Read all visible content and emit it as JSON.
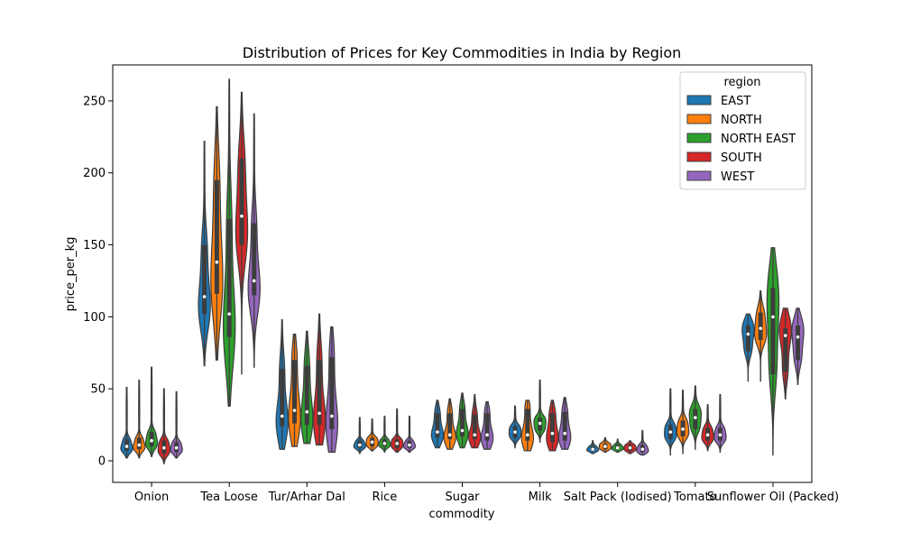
{
  "chart_data": {
    "type": "violin",
    "title": "Distribution of Prices for Key Commodities in India by Region",
    "xlabel": "commodity",
    "ylabel": "price_per_kg",
    "ylim": [
      -15,
      275
    ],
    "yticks": [
      0,
      50,
      100,
      150,
      200,
      250
    ],
    "categories": [
      "Onion",
      "Tea Loose",
      "Tur/Arhar Dal",
      "Rice",
      "Sugar",
      "Milk",
      "Salt Pack (Iodised)",
      "Tomato",
      "Sunflower Oil (Packed)"
    ],
    "legend": {
      "title": "region",
      "placement": "top-right"
    },
    "colors": {
      "EAST": "#1f77b4",
      "NORTH": "#ff7f0e",
      "NORTH EAST": "#2ca02c",
      "SOUTH": "#d62728",
      "WEST": "#9467bd"
    },
    "series": [
      {
        "name": "EAST",
        "stats": [
          {
            "min": 2,
            "q1": 7,
            "median": 10,
            "q3": 15,
            "max": 51
          },
          {
            "min": 66,
            "q1": 102,
            "median": 114,
            "q3": 150,
            "max": 222
          },
          {
            "min": 8,
            "q1": 24,
            "median": 31,
            "q3": 64,
            "max": 98
          },
          {
            "min": 5,
            "q1": 9,
            "median": 11,
            "q3": 14,
            "max": 30
          },
          {
            "min": 9,
            "q1": 16,
            "median": 20,
            "q3": 33,
            "max": 42
          },
          {
            "min": 9,
            "q1": 16,
            "median": 20,
            "q3": 24,
            "max": 38
          },
          {
            "min": 5,
            "q1": 7,
            "median": 8,
            "q3": 10,
            "max": 14
          },
          {
            "min": 4,
            "q1": 15,
            "median": 20,
            "q3": 25,
            "max": 50
          },
          {
            "min": 55,
            "q1": 76,
            "median": 88,
            "q3": 94,
            "max": 102
          }
        ]
      },
      {
        "name": "NORTH",
        "stats": [
          {
            "min": 2,
            "q1": 8,
            "median": 11,
            "q3": 16,
            "max": 56
          },
          {
            "min": 70,
            "q1": 116,
            "median": 138,
            "q3": 195,
            "max": 246
          },
          {
            "min": 10,
            "q1": 26,
            "median": 35,
            "q3": 70,
            "max": 88
          },
          {
            "min": 7,
            "q1": 10,
            "median": 13,
            "q3": 16,
            "max": 29
          },
          {
            "min": 8,
            "q1": 15,
            "median": 18,
            "q3": 33,
            "max": 43
          },
          {
            "min": 7,
            "q1": 14,
            "median": 18,
            "q3": 36,
            "max": 42
          },
          {
            "min": 6,
            "q1": 8,
            "median": 10,
            "q3": 12,
            "max": 16
          },
          {
            "min": 5,
            "q1": 17,
            "median": 22,
            "q3": 28,
            "max": 49
          },
          {
            "min": 55,
            "q1": 84,
            "median": 92,
            "q3": 103,
            "max": 118
          }
        ]
      },
      {
        "name": "NORTH EAST",
        "stats": [
          {
            "min": 3,
            "q1": 10,
            "median": 14,
            "q3": 20,
            "max": 65
          },
          {
            "min": 38,
            "q1": 86,
            "median": 102,
            "q3": 168,
            "max": 265
          },
          {
            "min": 12,
            "q1": 25,
            "median": 34,
            "q3": 66,
            "max": 90
          },
          {
            "min": 6,
            "q1": 10,
            "median": 12,
            "q3": 15,
            "max": 31
          },
          {
            "min": 9,
            "q1": 17,
            "median": 21,
            "q3": 36,
            "max": 47
          },
          {
            "min": 13,
            "q1": 21,
            "median": 26,
            "q3": 30,
            "max": 56
          },
          {
            "min": 6,
            "q1": 8,
            "median": 9,
            "q3": 11,
            "max": 15
          },
          {
            "min": 8,
            "q1": 22,
            "median": 30,
            "q3": 36,
            "max": 52
          },
          {
            "min": 4,
            "q1": 60,
            "median": 100,
            "q3": 120,
            "max": 148
          }
        ]
      },
      {
        "name": "SOUTH",
        "stats": [
          {
            "min": -2,
            "q1": 5,
            "median": 9,
            "q3": 14,
            "max": 50
          },
          {
            "min": 60,
            "q1": 150,
            "median": 170,
            "q3": 210,
            "max": 256
          },
          {
            "min": 11,
            "q1": 25,
            "median": 33,
            "q3": 70,
            "max": 102
          },
          {
            "min": 6,
            "q1": 9,
            "median": 12,
            "q3": 15,
            "max": 36
          },
          {
            "min": 9,
            "q1": 15,
            "median": 18,
            "q3": 32,
            "max": 46
          },
          {
            "min": 7,
            "q1": 13,
            "median": 19,
            "q3": 33,
            "max": 42
          },
          {
            "min": 5,
            "q1": 7,
            "median": 9,
            "q3": 11,
            "max": 14
          },
          {
            "min": 7,
            "q1": 14,
            "median": 18,
            "q3": 23,
            "max": 39
          },
          {
            "min": 43,
            "q1": 62,
            "median": 87,
            "q3": 92,
            "max": 106
          }
        ]
      },
      {
        "name": "WEST",
        "stats": [
          {
            "min": 2,
            "q1": 6,
            "median": 9,
            "q3": 13,
            "max": 48
          },
          {
            "min": 65,
            "q1": 115,
            "median": 125,
            "q3": 165,
            "max": 241
          },
          {
            "min": 6,
            "q1": 22,
            "median": 31,
            "q3": 72,
            "max": 93
          },
          {
            "min": 6,
            "q1": 9,
            "median": 11,
            "q3": 14,
            "max": 31
          },
          {
            "min": 8,
            "q1": 14,
            "median": 18,
            "q3": 33,
            "max": 41
          },
          {
            "min": 8,
            "q1": 14,
            "median": 19,
            "q3": 34,
            "max": 44
          },
          {
            "min": 4,
            "q1": 6,
            "median": 8,
            "q3": 11,
            "max": 21
          },
          {
            "min": 6,
            "q1": 14,
            "median": 18,
            "q3": 23,
            "max": 46
          },
          {
            "min": 53,
            "q1": 70,
            "median": 86,
            "q3": 94,
            "max": 106
          }
        ]
      }
    ]
  }
}
